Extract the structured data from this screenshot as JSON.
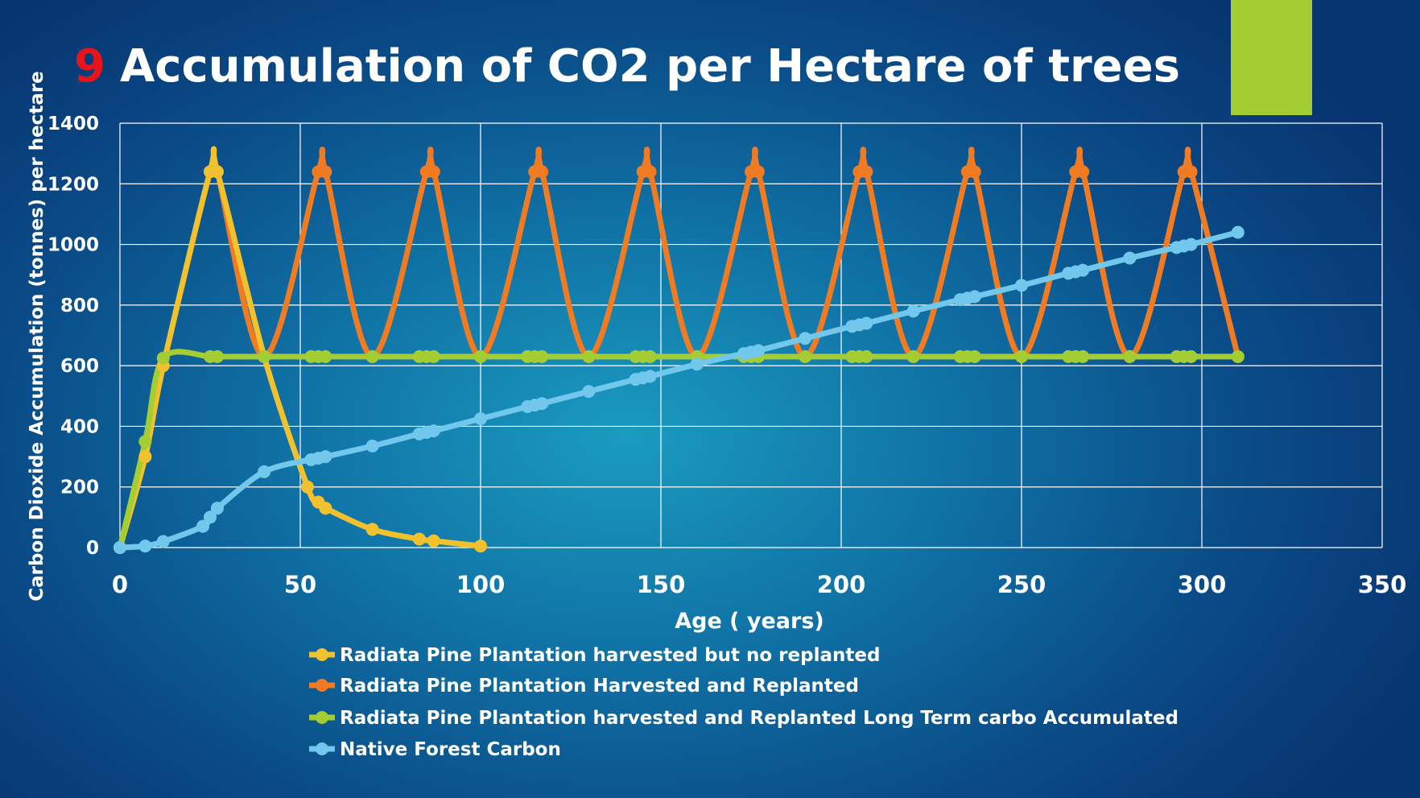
{
  "title": {
    "number": "9",
    "text": "Accumulation of CO2 per Hectare of trees"
  },
  "colors": {
    "title_number": "#e8141b",
    "accent_block": "#a4cc33"
  },
  "chart_data": {
    "type": "line",
    "xlabel": "Age ( years)",
    "ylabel": "Carbon Dioxide Accumulation (tonnes) per hectare",
    "xlim": [
      0,
      350
    ],
    "ylim": [
      0,
      1400
    ],
    "xticks": [
      0,
      50,
      100,
      150,
      200,
      250,
      300,
      350
    ],
    "yticks": [
      0,
      200,
      400,
      600,
      800,
      1000,
      1200,
      1400
    ],
    "grid": true,
    "legend_position": "bottom",
    "series": [
      {
        "name": "Radiata Pine Plantation harvested but no replanted",
        "color": "#f2c12e",
        "x": [
          0,
          7,
          12,
          25,
          27,
          40,
          52,
          55,
          57,
          70,
          83,
          87,
          100
        ],
        "y": [
          0,
          300,
          600,
          1240,
          1240,
          630,
          200,
          150,
          130,
          60,
          28,
          22,
          5
        ]
      },
      {
        "name": "Radiata Pine Plantation Harvested and Replanted",
        "color": "#f07b22",
        "x": [
          0,
          7,
          12,
          25,
          27,
          40,
          55,
          57,
          70,
          85,
          87,
          100,
          115,
          117,
          130,
          145,
          147,
          160,
          175,
          177,
          190,
          205,
          207,
          220,
          235,
          237,
          250,
          265,
          267,
          280,
          295,
          297,
          310
        ],
        "y": [
          0,
          300,
          600,
          1240,
          1240,
          630,
          1240,
          1240,
          630,
          1240,
          1240,
          630,
          1240,
          1240,
          630,
          1240,
          1240,
          630,
          1240,
          1240,
          630,
          1240,
          1240,
          630,
          1240,
          1240,
          630,
          1240,
          1240,
          630,
          1240,
          1240,
          630
        ]
      },
      {
        "name": "Radiata Pine Plantation harvested and Replanted Long Term carbo Accumulated",
        "color": "#a4cc33",
        "x": [
          0,
          7,
          12,
          25,
          27,
          40,
          53,
          55,
          57,
          70,
          83,
          85,
          87,
          100,
          113,
          115,
          117,
          130,
          143,
          145,
          147,
          160,
          173,
          175,
          177,
          190,
          203,
          205,
          207,
          220,
          233,
          235,
          237,
          250,
          263,
          265,
          267,
          280,
          293,
          295,
          297,
          310
        ],
        "y": [
          0,
          350,
          625,
          630,
          630,
          630,
          630,
          630,
          630,
          630,
          630,
          630,
          630,
          630,
          630,
          630,
          630,
          630,
          630,
          630,
          630,
          630,
          630,
          630,
          630,
          630,
          630,
          630,
          630,
          630,
          630,
          630,
          630,
          630,
          630,
          630,
          630,
          630,
          630,
          630,
          630,
          630
        ]
      },
      {
        "name": "Native Forest Carbon",
        "color": "#72c8ec",
        "x": [
          0,
          7,
          12,
          23,
          25,
          27,
          40,
          53,
          55,
          57,
          70,
          83,
          85,
          87,
          100,
          113,
          115,
          117,
          130,
          143,
          145,
          147,
          160,
          173,
          175,
          177,
          190,
          203,
          205,
          207,
          220,
          233,
          235,
          237,
          250,
          263,
          265,
          267,
          280,
          293,
          295,
          297,
          310
        ],
        "y": [
          0,
          5,
          20,
          70,
          100,
          130,
          250,
          290,
          295,
          300,
          335,
          375,
          380,
          385,
          425,
          465,
          470,
          475,
          515,
          555,
          560,
          565,
          605,
          640,
          645,
          650,
          690,
          730,
          735,
          740,
          780,
          818,
          823,
          828,
          865,
          905,
          910,
          915,
          955,
          990,
          995,
          1000,
          1040
        ]
      }
    ]
  }
}
